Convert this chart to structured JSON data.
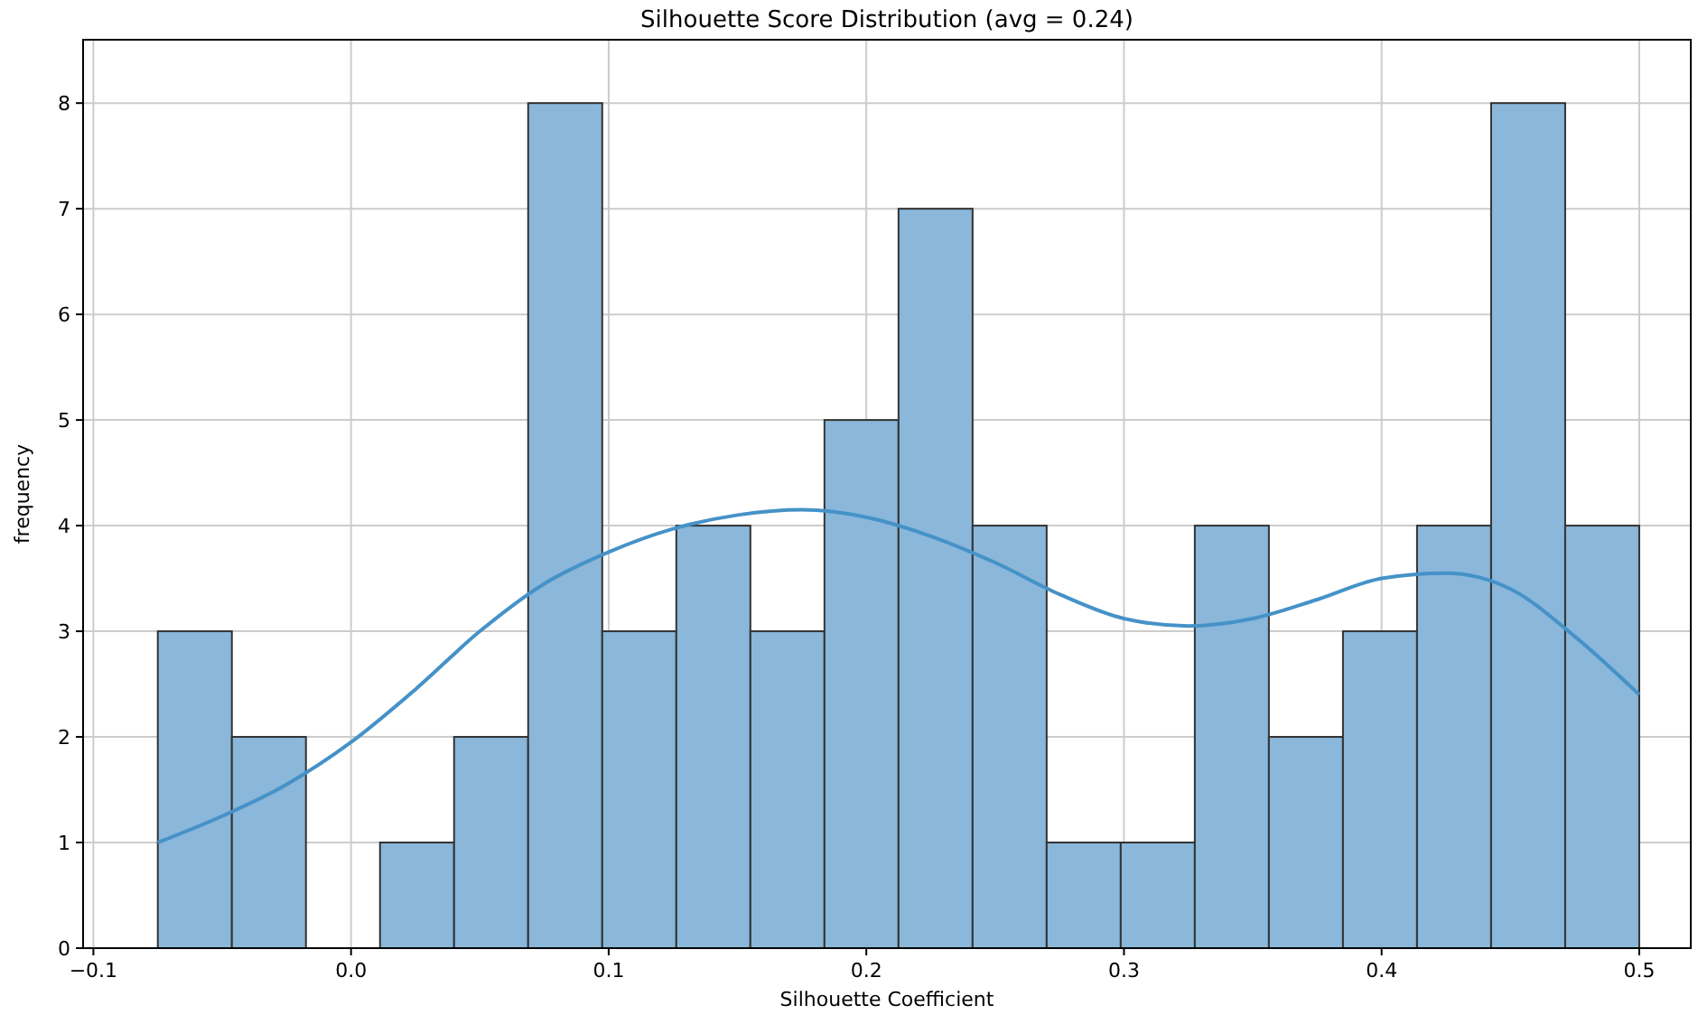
{
  "chart_data": {
    "type": "histogram",
    "title": "Silhouette Score Distribution (avg = 0.24)",
    "xlabel": "Silhouette Coefficient",
    "ylabel": "frequency",
    "series": [
      {
        "color": "#8ab7da",
        "bins": [
          -0.075,
          -0.04625,
          -0.0175,
          0.01125,
          0.04,
          0.06875,
          0.0975,
          0.12625,
          0.155,
          0.18375,
          0.2125,
          0.24125,
          0.27,
          0.29875,
          0.3275,
          0.35625,
          0.385,
          0.41375,
          0.4425,
          0.47125,
          0.5
        ],
        "values": [
          3,
          2,
          0,
          1,
          2,
          8,
          3,
          4,
          3,
          5,
          7,
          4,
          1,
          1,
          4,
          2,
          3,
          4,
          8,
          4
        ]
      },
      {
        "type": "line",
        "color": "#4592c8",
        "x": [
          -0.075,
          -0.05,
          -0.025,
          0,
          0.025,
          0.05,
          0.075,
          0.1,
          0.125,
          0.15,
          0.175,
          0.2,
          0.225,
          0.25,
          0.275,
          0.3,
          0.325,
          0.35,
          0.375,
          0.4,
          0.425,
          0.45,
          0.475,
          0.5
        ],
        "values": [
          1.0,
          1.25,
          1.55,
          1.95,
          2.45,
          3.0,
          3.45,
          3.75,
          3.97,
          4.1,
          4.15,
          4.08,
          3.9,
          3.65,
          3.35,
          3.12,
          3.05,
          3.12,
          3.3,
          3.5,
          3.55,
          3.4,
          2.95,
          2.4
        ]
      }
    ],
    "xlim": [
      -0.104,
      0.52
    ],
    "ylim": [
      0,
      8.6
    ],
    "xticks": [
      {
        "value": -0.1,
        "label": "−0.1"
      },
      {
        "value": 0,
        "label": "0.0"
      },
      {
        "value": 0.1,
        "label": "0.1"
      },
      {
        "value": 0.2,
        "label": "0.2"
      },
      {
        "value": 0.3,
        "label": "0.3"
      },
      {
        "value": 0.4,
        "label": "0.4"
      },
      {
        "value": 0.5,
        "label": "0.5"
      }
    ],
    "yticks": [
      0,
      1,
      2,
      3,
      4,
      5,
      6,
      7,
      8
    ],
    "grid": true
  }
}
